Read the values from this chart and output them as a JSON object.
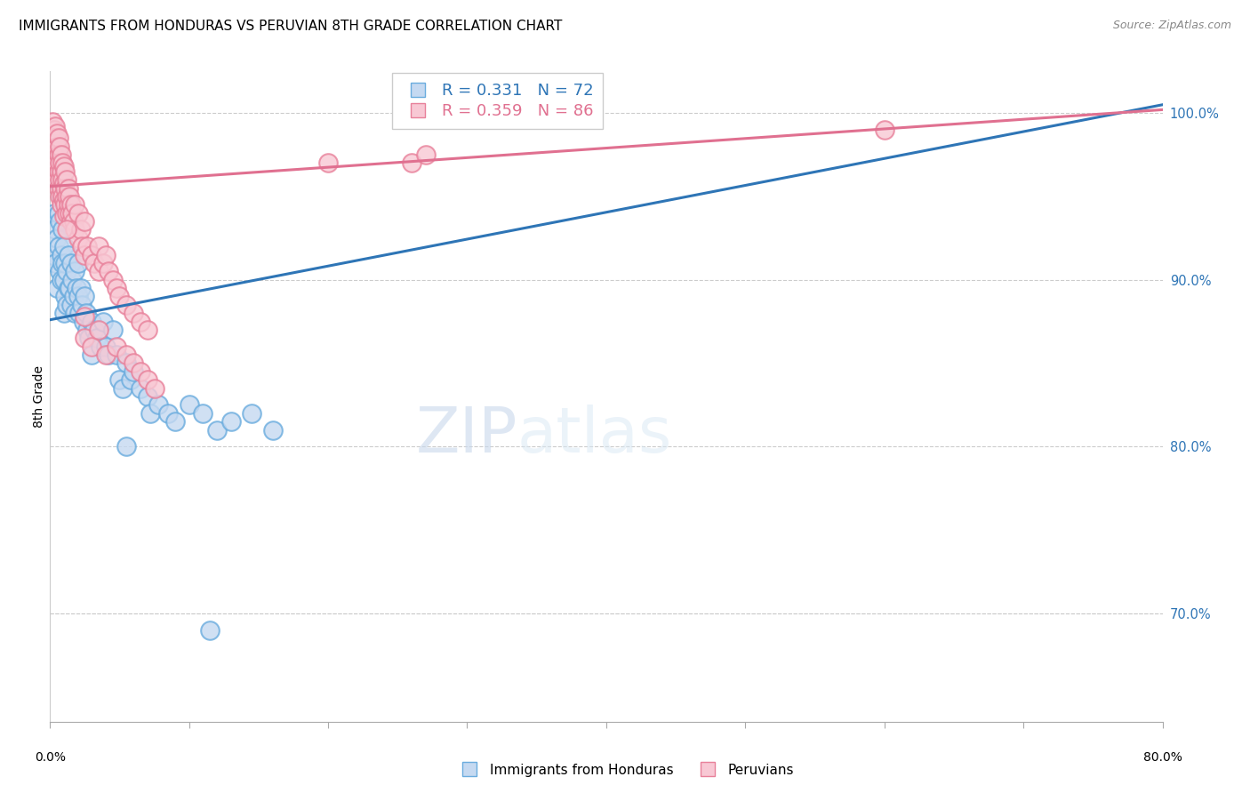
{
  "title": "IMMIGRANTS FROM HONDURAS VS PERUVIAN 8TH GRADE CORRELATION CHART",
  "source": "Source: ZipAtlas.com",
  "ylabel": "8th Grade",
  "ytick_labels": [
    "70.0%",
    "80.0%",
    "90.0%",
    "100.0%"
  ],
  "ytick_values": [
    0.7,
    0.8,
    0.9,
    1.0
  ],
  "xlim": [
    0.0,
    0.8
  ],
  "ylim": [
    0.635,
    1.025
  ],
  "legend_blue": "R = 0.331   N = 72",
  "legend_pink": "R = 0.359   N = 86",
  "blue_scatter": [
    [
      0.002,
      0.915
    ],
    [
      0.003,
      0.94
    ],
    [
      0.003,
      0.96
    ],
    [
      0.004,
      0.93
    ],
    [
      0.004,
      0.91
    ],
    [
      0.005,
      0.925
    ],
    [
      0.005,
      0.895
    ],
    [
      0.006,
      0.94
    ],
    [
      0.006,
      0.92
    ],
    [
      0.007,
      0.935
    ],
    [
      0.007,
      0.905
    ],
    [
      0.008,
      0.95
    ],
    [
      0.008,
      0.915
    ],
    [
      0.008,
      0.9
    ],
    [
      0.009,
      0.93
    ],
    [
      0.009,
      0.91
    ],
    [
      0.01,
      0.92
    ],
    [
      0.01,
      0.9
    ],
    [
      0.01,
      0.88
    ],
    [
      0.011,
      0.91
    ],
    [
      0.011,
      0.89
    ],
    [
      0.012,
      0.905
    ],
    [
      0.012,
      0.885
    ],
    [
      0.013,
      0.915
    ],
    [
      0.013,
      0.895
    ],
    [
      0.014,
      0.895
    ],
    [
      0.015,
      0.91
    ],
    [
      0.015,
      0.885
    ],
    [
      0.016,
      0.9
    ],
    [
      0.017,
      0.89
    ],
    [
      0.018,
      0.905
    ],
    [
      0.018,
      0.88
    ],
    [
      0.019,
      0.895
    ],
    [
      0.02,
      0.91
    ],
    [
      0.02,
      0.89
    ],
    [
      0.021,
      0.88
    ],
    [
      0.022,
      0.895
    ],
    [
      0.023,
      0.885
    ],
    [
      0.024,
      0.875
    ],
    [
      0.025,
      0.89
    ],
    [
      0.026,
      0.88
    ],
    [
      0.027,
      0.87
    ],
    [
      0.028,
      0.865
    ],
    [
      0.03,
      0.875
    ],
    [
      0.03,
      0.855
    ],
    [
      0.032,
      0.87
    ],
    [
      0.034,
      0.865
    ],
    [
      0.036,
      0.86
    ],
    [
      0.038,
      0.875
    ],
    [
      0.04,
      0.86
    ],
    [
      0.042,
      0.855
    ],
    [
      0.045,
      0.87
    ],
    [
      0.048,
      0.855
    ],
    [
      0.05,
      0.84
    ],
    [
      0.052,
      0.835
    ],
    [
      0.055,
      0.85
    ],
    [
      0.058,
      0.84
    ],
    [
      0.06,
      0.845
    ],
    [
      0.065,
      0.835
    ],
    [
      0.07,
      0.83
    ],
    [
      0.072,
      0.82
    ],
    [
      0.078,
      0.825
    ],
    [
      0.085,
      0.82
    ],
    [
      0.09,
      0.815
    ],
    [
      0.1,
      0.825
    ],
    [
      0.11,
      0.82
    ],
    [
      0.12,
      0.81
    ],
    [
      0.13,
      0.815
    ],
    [
      0.145,
      0.82
    ],
    [
      0.16,
      0.81
    ],
    [
      0.055,
      0.8
    ],
    [
      0.115,
      0.69
    ]
  ],
  "pink_scatter": [
    [
      0.001,
      0.99
    ],
    [
      0.002,
      0.995
    ],
    [
      0.002,
      0.985
    ],
    [
      0.003,
      0.99
    ],
    [
      0.003,
      0.985
    ],
    [
      0.003,
      0.975
    ],
    [
      0.004,
      0.992
    ],
    [
      0.004,
      0.985
    ],
    [
      0.004,
      0.975
    ],
    [
      0.004,
      0.965
    ],
    [
      0.005,
      0.988
    ],
    [
      0.005,
      0.98
    ],
    [
      0.005,
      0.97
    ],
    [
      0.005,
      0.96
    ],
    [
      0.006,
      0.985
    ],
    [
      0.006,
      0.975
    ],
    [
      0.006,
      0.965
    ],
    [
      0.006,
      0.955
    ],
    [
      0.007,
      0.98
    ],
    [
      0.007,
      0.97
    ],
    [
      0.007,
      0.96
    ],
    [
      0.007,
      0.95
    ],
    [
      0.008,
      0.975
    ],
    [
      0.008,
      0.965
    ],
    [
      0.008,
      0.955
    ],
    [
      0.008,
      0.945
    ],
    [
      0.009,
      0.97
    ],
    [
      0.009,
      0.96
    ],
    [
      0.009,
      0.95
    ],
    [
      0.01,
      0.968
    ],
    [
      0.01,
      0.958
    ],
    [
      0.01,
      0.948
    ],
    [
      0.01,
      0.938
    ],
    [
      0.011,
      0.965
    ],
    [
      0.011,
      0.955
    ],
    [
      0.011,
      0.945
    ],
    [
      0.012,
      0.96
    ],
    [
      0.012,
      0.95
    ],
    [
      0.012,
      0.94
    ],
    [
      0.013,
      0.955
    ],
    [
      0.013,
      0.945
    ],
    [
      0.014,
      0.95
    ],
    [
      0.014,
      0.94
    ],
    [
      0.015,
      0.945
    ],
    [
      0.015,
      0.935
    ],
    [
      0.016,
      0.94
    ],
    [
      0.017,
      0.935
    ],
    [
      0.018,
      0.945
    ],
    [
      0.018,
      0.93
    ],
    [
      0.02,
      0.94
    ],
    [
      0.02,
      0.925
    ],
    [
      0.022,
      0.93
    ],
    [
      0.023,
      0.92
    ],
    [
      0.025,
      0.935
    ],
    [
      0.025,
      0.915
    ],
    [
      0.027,
      0.92
    ],
    [
      0.03,
      0.915
    ],
    [
      0.032,
      0.91
    ],
    [
      0.035,
      0.92
    ],
    [
      0.035,
      0.905
    ],
    [
      0.038,
      0.91
    ],
    [
      0.04,
      0.915
    ],
    [
      0.042,
      0.905
    ],
    [
      0.045,
      0.9
    ],
    [
      0.048,
      0.895
    ],
    [
      0.05,
      0.89
    ],
    [
      0.055,
      0.885
    ],
    [
      0.06,
      0.88
    ],
    [
      0.065,
      0.875
    ],
    [
      0.07,
      0.87
    ],
    [
      0.025,
      0.865
    ],
    [
      0.03,
      0.86
    ],
    [
      0.035,
      0.87
    ],
    [
      0.04,
      0.855
    ],
    [
      0.048,
      0.86
    ],
    [
      0.055,
      0.855
    ],
    [
      0.06,
      0.85
    ],
    [
      0.065,
      0.845
    ],
    [
      0.07,
      0.84
    ],
    [
      0.075,
      0.835
    ],
    [
      0.2,
      0.97
    ],
    [
      0.26,
      0.97
    ],
    [
      0.27,
      0.975
    ],
    [
      0.6,
      0.99
    ],
    [
      0.025,
      0.878
    ],
    [
      0.012,
      0.93
    ]
  ],
  "blue_trendline_x": [
    0.0,
    0.8
  ],
  "blue_trendline_y": [
    0.876,
    1.005
  ],
  "pink_trendline_x": [
    0.0,
    0.8
  ],
  "pink_trendline_y": [
    0.956,
    1.002
  ]
}
